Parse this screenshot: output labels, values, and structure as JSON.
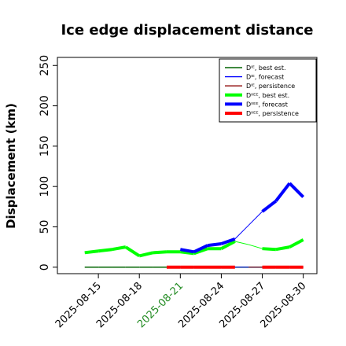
{
  "chart_data": {
    "type": "line",
    "title": "Ice edge displacement distance",
    "ylabel": "Displacement (km)",
    "xlabel": "",
    "ylim": [
      0,
      260
    ],
    "yticks": [
      0,
      50,
      100,
      150,
      200,
      250
    ],
    "xlim": [
      "2025-08-12",
      "2025-08-31"
    ],
    "xticks": [
      "2025-08-15",
      "2025-08-18",
      "2025-08-21",
      "2025-08-24",
      "2025-08-27",
      "2025-08-30"
    ],
    "highlighted_xtick": "2025-08-21",
    "highlight_color": "#228b22",
    "legend_position": "top-right",
    "series": [
      {
        "name": "Dᴵᴱ, best est.",
        "color": "#006400",
        "width": 1.5,
        "x": [
          "2025-08-14",
          "2025-08-15",
          "2025-08-16",
          "2025-08-17",
          "2025-08-18",
          "2025-08-19",
          "2025-08-20",
          "2025-08-21",
          "2025-08-22",
          "2025-08-23",
          "2025-08-24",
          "2025-08-25",
          "2025-08-26",
          "2025-08-27",
          "2025-08-28",
          "2025-08-29",
          "2025-08-30"
        ],
        "y": [
          0,
          0,
          0,
          0,
          0,
          0,
          0,
          0,
          0,
          0,
          0,
          0,
          0,
          0,
          0,
          0,
          0
        ]
      },
      {
        "name": "Dᴵᴱ, forecast",
        "color": "#0000ff",
        "width": 1,
        "x": [
          "2025-08-21",
          "2025-08-22",
          "2025-08-23",
          "2025-08-24",
          "2025-08-25",
          "2025-08-26",
          "2025-08-27",
          "2025-08-28",
          "2025-08-29",
          "2025-08-30"
        ],
        "y": [
          0,
          0,
          0,
          0,
          0,
          0,
          0,
          0,
          0,
          0
        ]
      },
      {
        "name": "Dᴵᴱ, persistence",
        "color": "#8b0000",
        "width": 1,
        "x": [
          "2025-08-26",
          "2025-08-27"
        ],
        "y": [
          0,
          0
        ]
      },
      {
        "name": "Dᴵᴵᴱᴱ, best est.",
        "color": "#00ff00",
        "width": 4,
        "x": [
          "2025-08-14",
          "2025-08-15",
          "2025-08-16",
          "2025-08-17",
          "2025-08-18",
          "2025-08-19",
          "2025-08-20",
          "2025-08-21",
          "2025-08-22",
          "2025-08-23",
          "2025-08-24",
          "2025-08-25",
          "2025-08-26",
          "2025-08-27",
          "2025-08-28",
          "2025-08-29",
          "2025-08-30"
        ],
        "y": [
          18,
          20,
          22,
          25,
          14,
          18,
          19,
          19,
          17,
          23,
          23,
          32,
          28,
          23,
          22,
          25,
          34
        ],
        "thin_from": "2025-08-25",
        "thin_to": "2025-08-27"
      },
      {
        "name": "Dᴵᴵᴱᴱ, forecast",
        "color": "#0000ff",
        "width": 4,
        "x": [
          "2025-08-21",
          "2025-08-22",
          "2025-08-23",
          "2025-08-24",
          "2025-08-25",
          "2025-08-26",
          "2025-08-27",
          "2025-08-28",
          "2025-08-29",
          "2025-08-30"
        ],
        "y": [
          22,
          19,
          27,
          29,
          35,
          52,
          69,
          82,
          104,
          87
        ],
        "thin_from": "2025-08-25",
        "thin_to": "2025-08-27"
      },
      {
        "name": "Dᴵᴵᴱᴱ, persistence",
        "color": "#ff0000",
        "width": 4,
        "x": [
          "2025-08-20",
          "2025-08-21",
          "2025-08-22",
          "2025-08-23",
          "2025-08-24",
          "2025-08-25",
          "2025-08-26",
          "2025-08-27",
          "2025-08-28",
          "2025-08-29",
          "2025-08-30"
        ],
        "y": [
          0,
          0,
          0,
          0,
          0,
          0,
          0,
          0,
          0,
          0,
          0
        ],
        "gap_from": "2025-08-25",
        "gap_to": "2025-08-27"
      }
    ]
  }
}
